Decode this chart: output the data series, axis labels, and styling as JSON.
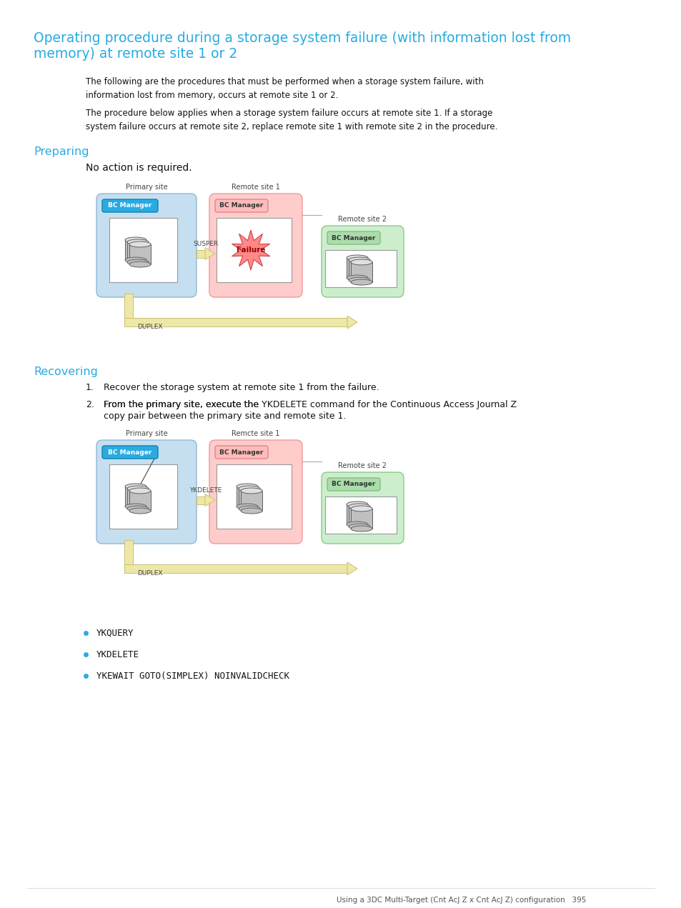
{
  "title_line1": "Operating procedure during a storage system failure (with information lost from",
  "title_line2": "memory) at remote site 1 or 2",
  "title_color": "#29ABE2",
  "body_text1": "The following are the procedures that must be performed when a storage system failure, with\ninformation lost from memory, occurs at remote site 1 or 2.",
  "body_text2": "The procedure below applies when a storage system failure occurs at remote site 1. If a storage\nsystem failure occurs at remote site 2, replace remote site 1 with remote site 2 in the procedure.",
  "section1_title": "Preparing",
  "section1_body": "No action is required.",
  "section2_title": "Recovering",
  "recover_item1": "Recover the storage system at remote site 1 from the failure.",
  "recover_item2a": "From the primary site, execute the ",
  "recover_item2b": "YKDELETE",
  "recover_item2c": " command for the Continuous Access Journal Z",
  "recover_item2d": "copy pair between the primary site and remote site 1.",
  "bullet_items": [
    "YKQUERY",
    "YKDELETE",
    "YKEWAIT GOTO(SIMPLEX) NOINVALIDCHECK"
  ],
  "footer": "Using a 3DC Multi-Target (Cnt AcJ Z x Cnt AcJ Z) configuration   395",
  "cyan": "#29ABE2",
  "primary_bg": "#C5DFF0",
  "remote1_bg": "#FFCCCC",
  "remote2_bg": "#CCEECC",
  "bc_primary_bg": "#29ABE2",
  "bc_primary_edge": "#1080B0",
  "bc_remote1_bg": "#FFBBBB",
  "bc_remote1_edge": "#DD8888",
  "bc_remote2_bg": "#AADDAA",
  "bc_remote2_edge": "#88BB88",
  "arrow_fill": "#EDE8A8",
  "arrow_edge": "#C8C070",
  "failure_fill": "#FF8888",
  "failure_edge": "#CC4444",
  "inner_box_bg": "#FFFFFF",
  "inner_box_edge": "#888888",
  "site_edge": "#AAAAAA",
  "line_color": "#AAAAAA",
  "bullet_color": "#29ABE2"
}
